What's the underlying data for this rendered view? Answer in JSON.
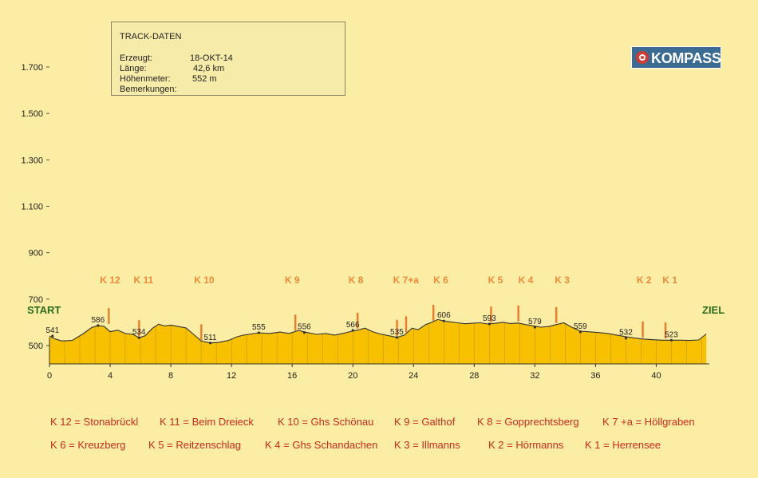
{
  "chart_data": {
    "type": "area",
    "title": "",
    "xlabel": "",
    "ylabel": "",
    "xlim": [
      0,
      43.5
    ],
    "ylim": [
      400,
      1800
    ],
    "x_ticks": [
      0,
      4,
      8,
      12,
      16,
      20,
      24,
      28,
      32,
      36,
      40
    ],
    "y_ticks": [
      {
        "value": 500,
        "label": "500"
      },
      {
        "value": 700,
        "label": "700"
      },
      {
        "value": 900,
        "label": "900"
      },
      {
        "value": 1100,
        "label": "1.100"
      },
      {
        "value": 1300,
        "label": "1.300"
      },
      {
        "value": 1500,
        "label": "1.500"
      },
      {
        "value": 1700,
        "label": "1.700"
      }
    ],
    "series": [
      {
        "x": [
          0,
          0.3,
          0.8,
          1.5,
          2.2,
          2.8,
          3.2,
          3.6,
          4.0,
          4.5,
          5.0,
          5.5,
          5.9,
          6.3,
          6.8,
          7.2,
          7.6,
          8.0,
          8.5,
          9.0,
          9.5,
          10.0,
          10.6,
          11.2,
          11.8,
          12.4,
          12.8,
          13.3,
          13.8,
          14.5,
          15.2,
          15.8,
          16.4,
          17.0,
          17.6,
          18.2,
          18.8,
          19.4,
          19.8,
          20.3,
          20.8,
          21.3,
          21.8,
          22.4,
          22.9,
          23.4,
          23.9,
          24.3,
          24.8,
          25.2,
          25.6,
          26.0,
          26.4,
          26.9,
          27.4,
          27.9,
          28.4,
          28.9,
          29.4,
          29.9,
          30.4,
          30.9,
          31.4,
          31.9,
          32.4,
          32.9,
          33.4,
          33.9,
          34.4,
          35.0,
          35.6,
          36.2,
          36.8,
          37.4,
          38.0,
          38.6,
          39.2,
          39.8,
          40.4,
          41.0,
          41.6,
          42.2,
          42.8,
          43.3
        ],
        "y": [
          541,
          530,
          520,
          522,
          550,
          578,
          586,
          583,
          560,
          566,
          552,
          548,
          534,
          542,
          575,
          592,
          584,
          588,
          582,
          576,
          548,
          520,
          511,
          514,
          522,
          538,
          545,
          550,
          555,
          552,
          558,
          552,
          565,
          556,
          548,
          552,
          545,
          553,
          560,
          566,
          575,
          560,
          550,
          542,
          535,
          545,
          575,
          568,
          590,
          600,
          612,
          606,
          602,
          598,
          594,
          596,
          598,
          593,
          596,
          600,
          595,
          597,
          590,
          585,
          579,
          582,
          590,
          598,
          580,
          562,
          559,
          556,
          552,
          545,
          538,
          532,
          528,
          525,
          523,
          523,
          523,
          522,
          524,
          550
        ]
      }
    ],
    "annotations": [
      {
        "x": 0.2,
        "y": 541,
        "label": "541"
      },
      {
        "x": 3.2,
        "y": 586,
        "label": "586"
      },
      {
        "x": 5.9,
        "y": 534,
        "label": "534"
      },
      {
        "x": 10.6,
        "y": 511,
        "label": "511"
      },
      {
        "x": 13.8,
        "y": 555,
        "label": "555"
      },
      {
        "x": 16.8,
        "y": 556,
        "label": "556"
      },
      {
        "x": 20.0,
        "y": 566,
        "label": "566"
      },
      {
        "x": 22.9,
        "y": 535,
        "label": "535"
      },
      {
        "x": 26.0,
        "y": 606,
        "label": "606"
      },
      {
        "x": 29.0,
        "y": 593,
        "label": "593"
      },
      {
        "x": 32.0,
        "y": 579,
        "label": "579"
      },
      {
        "x": 35.0,
        "y": 559,
        "label": "559"
      },
      {
        "x": 38.0,
        "y": 532,
        "label": "532"
      },
      {
        "x": 41.0,
        "y": 523,
        "label": "523"
      }
    ],
    "checkpoints": [
      {
        "x": 3.9,
        "y": 586,
        "label": "K 12"
      },
      {
        "x": 5.9,
        "y": 534,
        "label": "K 11"
      },
      {
        "x": 10.0,
        "y": 516,
        "label": "K 10"
      },
      {
        "x": 16.2,
        "y": 558,
        "label": "K 9"
      },
      {
        "x": 20.3,
        "y": 566,
        "label": "K 8"
      },
      {
        "x": 22.9,
        "y": 535,
        "label": "K 7"
      },
      {
        "x": 23.5,
        "y": 550,
        "label": "K 7a"
      },
      {
        "x": 25.3,
        "y": 600,
        "label": "K 6"
      },
      {
        "x": 29.1,
        "y": 593,
        "label": "K 5"
      },
      {
        "x": 30.9,
        "y": 597,
        "label": "K 4"
      },
      {
        "x": 33.4,
        "y": 590,
        "label": "K 3"
      },
      {
        "x": 39.1,
        "y": 528,
        "label": "K 2"
      },
      {
        "x": 40.6,
        "y": 524,
        "label": "K 1"
      }
    ],
    "checkpoint_header": [
      {
        "x": 4.0,
        "label": "K 12"
      },
      {
        "x": 6.2,
        "label": "K 11"
      },
      {
        "x": 10.2,
        "label": "K 10"
      },
      {
        "x": 16.0,
        "label": "K 9"
      },
      {
        "x": 20.2,
        "label": "K 8"
      },
      {
        "x": 23.5,
        "label": "K 7+a"
      },
      {
        "x": 25.8,
        "label": "K 6"
      },
      {
        "x": 29.4,
        "label": "K 5"
      },
      {
        "x": 31.4,
        "label": "K 4"
      },
      {
        "x": 33.8,
        "label": "K 3"
      },
      {
        "x": 39.2,
        "label": "K 2"
      },
      {
        "x": 40.9,
        "label": "K 1"
      }
    ],
    "colors": {
      "background": "#fbeda3",
      "fill": "#f7c100",
      "outline": "#333333",
      "marker": "#ee7a2b",
      "marker_label": "#ef8a3a",
      "grid": "#c8c0a0",
      "legend_text": "#cc2a1f",
      "start_end_text": "#2e6a1e"
    }
  },
  "track": {
    "title": "TRACK-DATEN",
    "rows": [
      {
        "key": "Erzeugt:",
        "value": "18-OKT-14"
      },
      {
        "key": "Länge:",
        "value": "42,6 km"
      },
      {
        "key": "Höhenmeter:",
        "value": "552 m"
      },
      {
        "key": "Bemerkungen:",
        "value": ""
      }
    ]
  },
  "logo": {
    "text": "KOMPASS"
  },
  "labels": {
    "start": "START",
    "ziel": "ZIEL"
  },
  "legend": [
    [
      "K 12 = Stonabrückl",
      "K 11 = Beim Dreieck",
      "K 10 = Ghs Schönau",
      "K 9 = Galthof",
      "K 8 = Gopprechtsberg",
      "K 7 +a = Höllgraben"
    ],
    [
      "K 6 = Kreuzberg",
      "K 5 = Reitzenschlag",
      "K 4 = Ghs Schandachen",
      "K 3 = Illmanns",
      "K 2 = Hörmanns",
      "K 1 = Herrensee"
    ]
  ]
}
